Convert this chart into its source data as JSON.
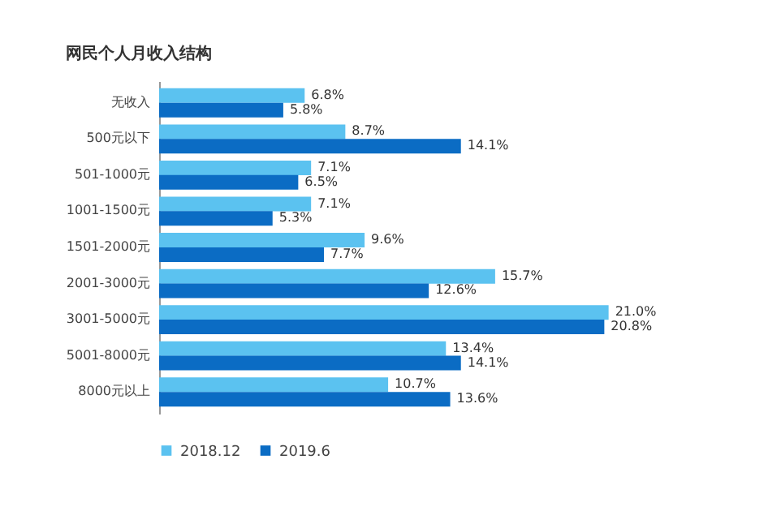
{
  "chart_data": {
    "type": "bar",
    "orientation": "horizontal",
    "title": "网民个人月收入结构",
    "categories": [
      "无收入",
      "500元以下",
      "501-1000元",
      "1001-1500元",
      "1501-2000元",
      "2001-3000元",
      "3001-5000元",
      "5001-8000元",
      "8000元以上"
    ],
    "series": [
      {
        "name": "2018.12",
        "color": "#5bc2f0",
        "values": [
          6.8,
          8.7,
          7.1,
          7.1,
          9.6,
          15.7,
          21.0,
          13.4,
          10.7
        ],
        "value_labels": [
          "6.8%",
          "8.7%",
          "7.1%",
          "7.1%",
          "9.6%",
          "15.7%",
          "21.0%",
          "13.4%",
          "10.7%"
        ]
      },
      {
        "name": "2019.6",
        "color": "#0b6cc4",
        "values": [
          5.8,
          14.1,
          6.5,
          5.3,
          7.7,
          12.6,
          20.8,
          14.1,
          13.6
        ],
        "value_labels": [
          "5.8%",
          "14.1%",
          "6.5%",
          "5.3%",
          "7.7%",
          "12.6%",
          "20.8%",
          "14.1%",
          "13.6%"
        ]
      }
    ],
    "grid": false,
    "legend": "bottom"
  }
}
